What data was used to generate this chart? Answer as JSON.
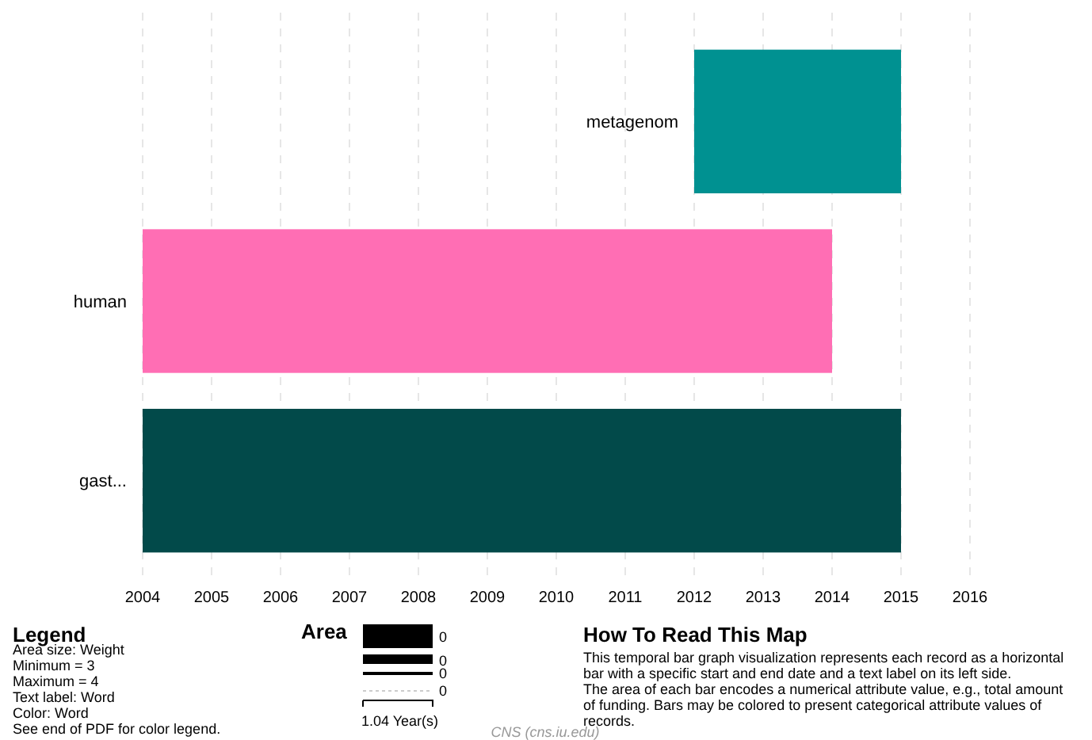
{
  "chart_data": {
    "type": "bar",
    "orientation": "horizontal",
    "categories": [
      "metagenom",
      "human",
      "gast..."
    ],
    "values": [
      3,
      10,
      11
    ],
    "base": [
      2012,
      2004,
      2004
    ],
    "colors": [
      "#009191",
      "#ff6eb4",
      "#024a4a"
    ],
    "xlim": [
      2004,
      2016
    ],
    "xticks": [
      2004,
      2005,
      2006,
      2007,
      2008,
      2009,
      2010,
      2011,
      2012,
      2013,
      2014,
      2015,
      2016
    ],
    "grid": "x",
    "annotations": [
      "Legend",
      "Area size: Weight",
      "Minimum = 3",
      "Maximum = 4",
      "Text label: Word",
      "Color: Word",
      "See end of PDF for color legend.",
      "Area",
      "0",
      "0",
      "0",
      "0",
      "1.04 Year(s)",
      "How To Read This Map",
      "This temporal bar graph visualization represents each record as a horizontal bar with a specific start and end date and a text label on its left side. The area of each bar encodes a numerical attribute value, e.g., total amount of funding. Bars may be colored to present categorical attribute values of records.",
      "CNS (cns.iu.edu)"
    ]
  }
}
